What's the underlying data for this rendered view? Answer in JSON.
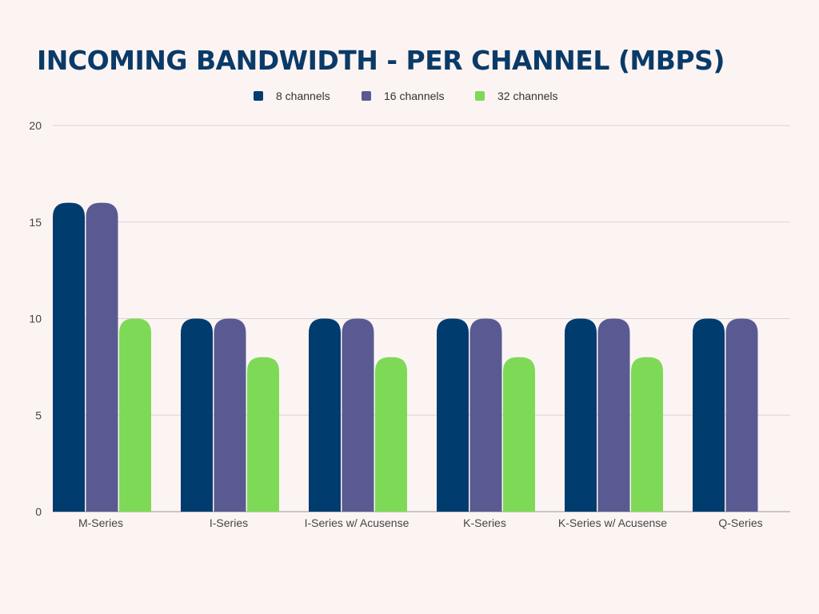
{
  "chart_data": {
    "type": "bar",
    "title": "INCOMING BANDWIDTH - PER CHANNEL (MBPS)",
    "categories": [
      "M-Series",
      "I-Series",
      "I-Series w/ Acusense",
      "K-Series",
      "K-Series w/ Acusense",
      "Q-Series"
    ],
    "series": [
      {
        "name": "8 channels",
        "color": "#003c6e",
        "values": [
          16,
          10,
          10,
          10,
          10,
          10
        ]
      },
      {
        "name": "16 channels",
        "color": "#5a5a92",
        "values": [
          16,
          10,
          10,
          10,
          10,
          10
        ]
      },
      {
        "name": "32 channels",
        "color": "#7ed957",
        "values": [
          10,
          8,
          8,
          8,
          8,
          null
        ]
      }
    ],
    "ylim": [
      0,
      20
    ],
    "yticks": [
      0,
      5,
      10,
      15,
      20
    ],
    "grid": true,
    "legend": "top-center"
  }
}
